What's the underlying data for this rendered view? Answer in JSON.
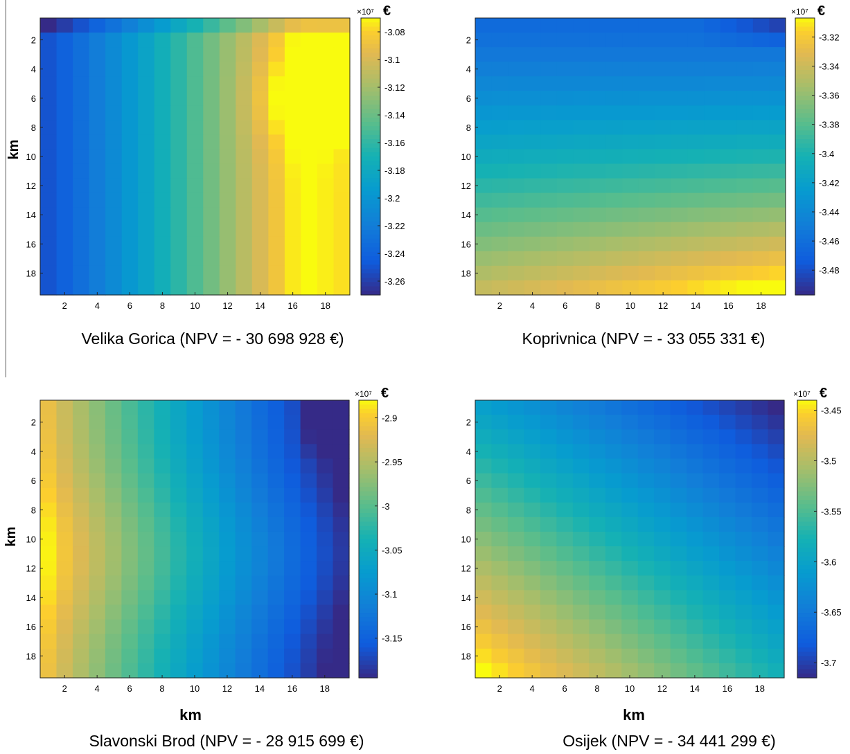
{
  "chart_data": [
    {
      "type": "heatmap",
      "caption": "Velika Gorica (NPV = - 30 698 928 €)",
      "ylabel": "km",
      "xlabel": "",
      "x_ticks": [
        "2",
        "4",
        "6",
        "8",
        "10",
        "12",
        "14",
        "16",
        "18"
      ],
      "y_ticks": [
        "2",
        "4",
        "6",
        "8",
        "10",
        "12",
        "14",
        "16",
        "18"
      ],
      "colorbar": {
        "exponent_label": "×10⁷",
        "unit": "€",
        "ticks": [
          "-3.08",
          "-3.1",
          "-3.12",
          "-3.14",
          "-3.16",
          "-3.18",
          "-3.2",
          "-3.22",
          "-3.24",
          "-3.26"
        ],
        "tick_values": [
          -3.08,
          -3.1,
          -3.12,
          -3.14,
          -3.16,
          -3.18,
          -3.2,
          -3.22,
          -3.24,
          -3.26
        ],
        "range": [
          -3.27,
          -3.07
        ]
      },
      "pattern": "low values on the left columns rising to a maximum near x≈16, y≈6"
    },
    {
      "type": "heatmap",
      "caption": "Koprivnica (NPV = - 33 055 331 €)",
      "ylabel": "",
      "xlabel": "",
      "x_ticks": [
        "2",
        "4",
        "6",
        "8",
        "10",
        "12",
        "14",
        "16",
        "18"
      ],
      "y_ticks": [
        "2",
        "4",
        "6",
        "8",
        "10",
        "12",
        "14",
        "16",
        "18"
      ],
      "colorbar": {
        "exponent_label": "×10⁷",
        "unit": "€",
        "ticks": [
          "-3.32",
          "-3.34",
          "-3.36",
          "-3.38",
          "-3.4",
          "-3.42",
          "-3.44",
          "-3.46",
          "-3.48"
        ],
        "tick_values": [
          -3.32,
          -3.34,
          -3.36,
          -3.38,
          -3.4,
          -3.42,
          -3.44,
          -3.46,
          -3.48
        ],
        "range": [
          -3.497,
          -3.307
        ]
      },
      "pattern": "low values in the top rows rising to a maximum at the bottom-right"
    },
    {
      "type": "heatmap",
      "caption": "Slavonski Brod (NPV = - 28 915 699 €)",
      "ylabel": "km",
      "xlabel": "km",
      "x_ticks": [
        "2",
        "4",
        "6",
        "8",
        "10",
        "12",
        "14",
        "16",
        "18"
      ],
      "y_ticks": [
        "2",
        "4",
        "6",
        "8",
        "10",
        "12",
        "14",
        "16",
        "18"
      ],
      "colorbar": {
        "exponent_label": "×10⁷",
        "unit": "€",
        "ticks": [
          "-2.9",
          "-2.95",
          "-3",
          "-3.05",
          "-3.1",
          "-3.15"
        ],
        "tick_values": [
          -2.9,
          -2.95,
          -3.0,
          -3.05,
          -3.1,
          -3.15
        ],
        "range": [
          -3.195,
          -2.88
        ]
      },
      "pattern": "high values at the left (maximum near x≈1, y≈11) falling to a minimum at the right edge"
    },
    {
      "type": "heatmap",
      "caption": "Osijek (NPV = - 34 441 299 €)",
      "ylabel": "",
      "xlabel": "km",
      "x_ticks": [
        "2",
        "4",
        "6",
        "8",
        "10",
        "12",
        "14",
        "16",
        "18"
      ],
      "y_ticks": [
        "2",
        "4",
        "6",
        "8",
        "10",
        "12",
        "14",
        "16",
        "18"
      ],
      "colorbar": {
        "exponent_label": "×10⁷",
        "unit": "€",
        "ticks": [
          "-3.45",
          "-3.5",
          "-3.55",
          "-3.6",
          "-3.65",
          "-3.7"
        ],
        "tick_values": [
          -3.45,
          -3.5,
          -3.55,
          -3.6,
          -3.65,
          -3.7
        ],
        "range": [
          -3.715,
          -3.44
        ]
      },
      "pattern": "maximum at the bottom-left, minimum at the top-right"
    }
  ]
}
